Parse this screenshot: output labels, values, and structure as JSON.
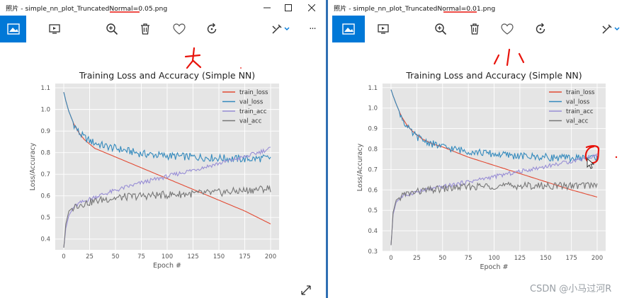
{
  "colors": {
    "accent": "#0078d7",
    "annotation": "#e8140c",
    "train_loss": "#e24a33",
    "val_loss": "#348abd",
    "train_acc": "#988ed5",
    "val_acc": "#777777",
    "plot_bg": "#e5e5e5"
  },
  "windows": [
    {
      "title_app": "照片",
      "title_file": "simple_nn_plot_TruncatedNormal=0.05.png",
      "annotation_glyph": "大",
      "toolbar_icons": [
        "image-icon",
        "slideshow-icon",
        "zoom-in-icon",
        "delete-icon",
        "heart-icon",
        "rotate-icon",
        "edit-icon",
        "more-icon"
      ],
      "more_label": "···"
    },
    {
      "title_app": "照片",
      "title_file": "simple_nn_plot_TruncatedNormal=0.01.png",
      "annotation_glyph": "小",
      "toolbar_icons": [
        "image-icon",
        "slideshow-icon",
        "zoom-in-icon",
        "delete-icon",
        "heart-icon",
        "rotate-icon",
        "edit-icon"
      ]
    }
  ],
  "chart_data": [
    {
      "type": "line",
      "title": "Training Loss and Accuracy (Simple NN)",
      "xlabel": "Epoch #",
      "ylabel": "Loss/Accuracy",
      "xlim": [
        0,
        200
      ],
      "ylim": [
        0.35,
        1.12
      ],
      "xticks": [
        0,
        25,
        50,
        75,
        100,
        125,
        150,
        175,
        200
      ],
      "yticks": [
        0.4,
        0.5,
        0.6,
        0.7,
        0.8,
        0.9,
        1.0,
        1.1
      ],
      "grid": true,
      "legend": "top-right",
      "x": [
        0,
        2,
        5,
        10,
        15,
        20,
        25,
        30,
        40,
        50,
        60,
        75,
        100,
        125,
        150,
        175,
        200
      ],
      "series": [
        {
          "name": "train_loss",
          "values": [
            1.08,
            1.04,
            0.99,
            0.93,
            0.89,
            0.86,
            0.84,
            0.82,
            0.8,
            0.78,
            0.76,
            0.73,
            0.68,
            0.63,
            0.58,
            0.53,
            0.47
          ]
        },
        {
          "name": "val_loss",
          "values": [
            1.08,
            1.04,
            0.99,
            0.93,
            0.89,
            0.87,
            0.855,
            0.845,
            0.83,
            0.82,
            0.81,
            0.795,
            0.785,
            0.78,
            0.775,
            0.77,
            0.775
          ]
        },
        {
          "name": "train_acc",
          "values": [
            0.36,
            0.45,
            0.51,
            0.55,
            0.565,
            0.575,
            0.585,
            0.595,
            0.61,
            0.625,
            0.64,
            0.66,
            0.69,
            0.72,
            0.75,
            0.78,
            0.82
          ]
        },
        {
          "name": "val_acc",
          "values": [
            0.36,
            0.47,
            0.53,
            0.55,
            0.56,
            0.565,
            0.57,
            0.575,
            0.585,
            0.59,
            0.595,
            0.6,
            0.605,
            0.61,
            0.615,
            0.625,
            0.635
          ]
        }
      ]
    },
    {
      "type": "line",
      "title": "Training Loss and Accuracy (Simple NN)",
      "xlabel": "Epoch #",
      "ylabel": "Loss/Accuracy",
      "xlim": [
        0,
        200
      ],
      "ylim": [
        0.3,
        1.12
      ],
      "xticks": [
        0,
        25,
        50,
        75,
        100,
        125,
        150,
        175,
        200
      ],
      "yticks": [
        0.3,
        0.4,
        0.5,
        0.6,
        0.7,
        0.8,
        0.9,
        1.0,
        1.1
      ],
      "grid": true,
      "legend": "top-right",
      "x": [
        0,
        2,
        5,
        10,
        15,
        20,
        25,
        30,
        40,
        50,
        60,
        75,
        100,
        125,
        150,
        175,
        200
      ],
      "series": [
        {
          "name": "train_loss",
          "values": [
            1.09,
            1.06,
            1.02,
            0.96,
            0.92,
            0.89,
            0.87,
            0.85,
            0.825,
            0.81,
            0.79,
            0.76,
            0.72,
            0.68,
            0.64,
            0.6,
            0.565
          ]
        },
        {
          "name": "val_loss",
          "values": [
            1.09,
            1.06,
            1.02,
            0.96,
            0.91,
            0.88,
            0.86,
            0.845,
            0.825,
            0.81,
            0.8,
            0.79,
            0.775,
            0.765,
            0.76,
            0.755,
            0.76
          ]
        },
        {
          "name": "train_acc",
          "values": [
            0.33,
            0.48,
            0.54,
            0.565,
            0.575,
            0.585,
            0.59,
            0.595,
            0.605,
            0.615,
            0.625,
            0.64,
            0.665,
            0.69,
            0.715,
            0.74,
            0.77
          ]
        },
        {
          "name": "val_acc",
          "values": [
            0.33,
            0.49,
            0.55,
            0.57,
            0.58,
            0.585,
            0.59,
            0.595,
            0.6,
            0.605,
            0.61,
            0.615,
            0.62,
            0.62,
            0.62,
            0.62,
            0.625
          ]
        }
      ]
    }
  ],
  "watermark": "CSDN @小马过河R"
}
